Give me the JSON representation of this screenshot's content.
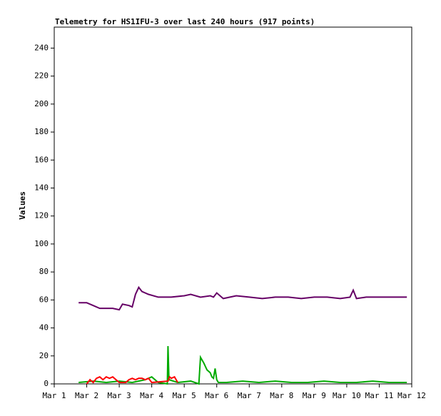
{
  "chart_data": {
    "type": "line",
    "title": "Telemetry for HS1IFU-3 over last 240 hours (917 points)",
    "ylabel": "Values",
    "xlim": [
      1,
      12
    ],
    "xticks": [
      {
        "value": 1,
        "label": "Mar 1"
      },
      {
        "value": 2,
        "label": "Mar 2"
      },
      {
        "value": 3,
        "label": "Mar 3"
      },
      {
        "value": 4,
        "label": "Mar 4"
      },
      {
        "value": 5,
        "label": "Mar 5"
      },
      {
        "value": 6,
        "label": "Mar 6"
      },
      {
        "value": 7,
        "label": "Mar 7"
      },
      {
        "value": 8,
        "label": "Mar 8"
      },
      {
        "value": 9,
        "label": "Mar 9"
      },
      {
        "value": 10,
        "label": "Mar 10"
      },
      {
        "value": 11,
        "label": "Mar 11"
      },
      {
        "value": 12,
        "label": "Mar 12"
      }
    ],
    "ylim": [
      0,
      255
    ],
    "yticks": [
      0,
      20,
      40,
      60,
      80,
      100,
      120,
      140,
      160,
      180,
      200,
      220,
      240
    ],
    "series": [
      {
        "color": "#00aa00",
        "x": [
          1.75,
          2.2,
          2.6,
          3.0,
          3.4,
          3.8,
          4.0,
          4.2,
          4.48,
          4.5,
          4.53,
          4.8,
          5.2,
          5.45,
          5.5,
          5.6,
          5.7,
          5.8,
          5.85,
          5.9,
          5.95,
          6.0,
          6.05,
          6.3,
          6.8,
          7.3,
          7.8,
          8.3,
          8.8,
          9.3,
          9.8,
          10.3,
          10.8,
          11.3,
          11.85
        ],
        "values": [
          1,
          2,
          1,
          2,
          1,
          3,
          5,
          1,
          0,
          27,
          3,
          1,
          2,
          0,
          19,
          15,
          10,
          8,
          5,
          4,
          11,
          3,
          1,
          1,
          2,
          1,
          2,
          1,
          1,
          2,
          1,
          1,
          2,
          1,
          1
        ]
      },
      {
        "color": "#ff0000",
        "x": [
          2.0,
          2.1,
          2.2,
          2.3,
          2.4,
          2.5,
          2.6,
          2.7,
          2.8,
          2.9,
          3.0,
          3.2,
          3.3,
          3.4,
          3.5,
          3.6,
          3.7,
          3.8,
          3.9,
          4.0,
          4.5,
          4.55,
          4.6,
          4.7,
          4.8
        ],
        "values": [
          0,
          3,
          1,
          4,
          5,
          3,
          5,
          4,
          5,
          3,
          1,
          1,
          3,
          4,
          3,
          4,
          4,
          3,
          4,
          1,
          2,
          5,
          4,
          5,
          1
        ]
      },
      {
        "color": "#660066",
        "x": [
          1.75,
          2.0,
          2.2,
          2.4,
          2.6,
          2.8,
          3.0,
          3.1,
          3.3,
          3.4,
          3.5,
          3.6,
          3.7,
          3.9,
          4.2,
          4.6,
          5.0,
          5.2,
          5.5,
          5.8,
          5.9,
          6.0,
          6.2,
          6.6,
          7.0,
          7.4,
          7.8,
          8.2,
          8.6,
          9.0,
          9.4,
          9.8,
          10.1,
          10.2,
          10.3,
          10.6,
          11.0,
          11.4,
          11.85
        ],
        "values": [
          58,
          58,
          56,
          54,
          54,
          54,
          53,
          57,
          56,
          55,
          64,
          69,
          66,
          64,
          62,
          62,
          63,
          64,
          62,
          63,
          62,
          65,
          61,
          63,
          62,
          61,
          62,
          62,
          61,
          62,
          62,
          61,
          62,
          67,
          61,
          62,
          62,
          62,
          62
        ]
      }
    ]
  }
}
